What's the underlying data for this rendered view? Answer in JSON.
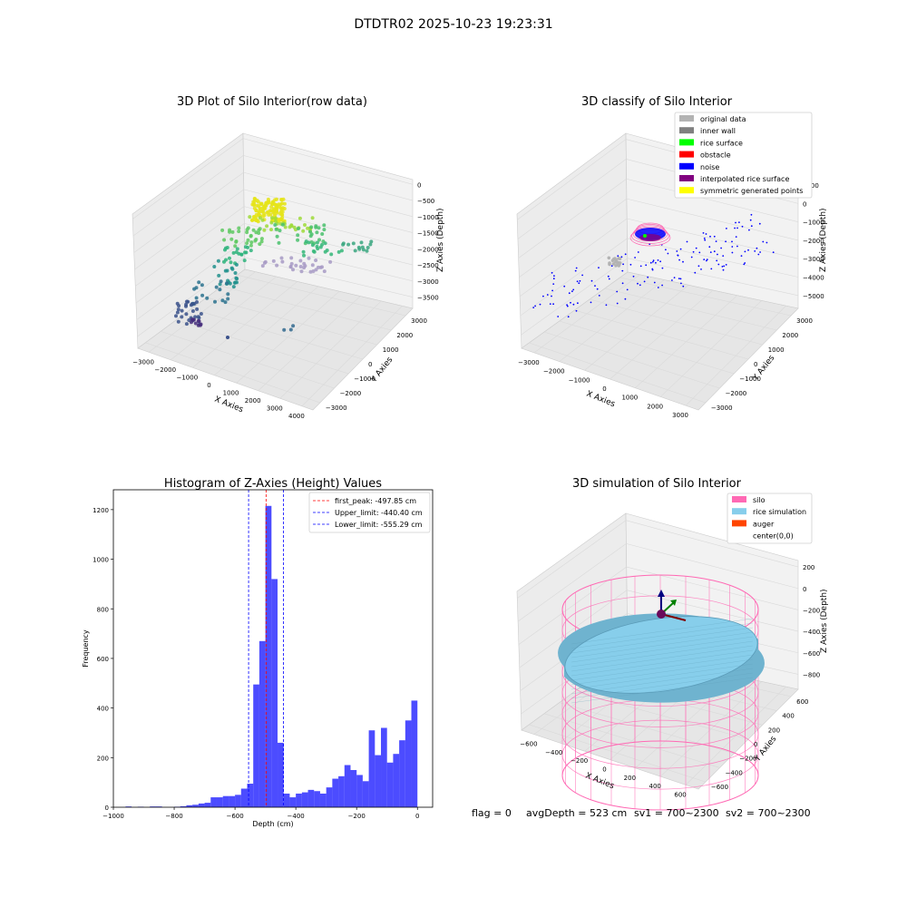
{
  "suptitle": "DTDTR02 2025-10-23 19:23:31",
  "panels": {
    "raw": {
      "title": "3D Plot of Silo Interior(row data)",
      "xlabel": "X Axies",
      "ylabel": "Y Axies",
      "zlabel": "Z Axies (Depth)",
      "xticks": [
        "−3000",
        "−2000",
        "−1000",
        "0",
        "1000",
        "2000",
        "3000",
        "4000"
      ],
      "yticks": [
        "−3000",
        "−2000",
        "−1000",
        "0",
        "1000",
        "2000",
        "3000"
      ],
      "zticks": [
        "0",
        "−500",
        "−1000",
        "−1500",
        "−2000",
        "−2500",
        "−3000",
        "−3500"
      ]
    },
    "classify": {
      "title": "3D classify of Silo Interior",
      "xlabel": "X Axies",
      "ylabel": "Y Axies",
      "zlabel": "Z Axies (Depth)",
      "xticks": [
        "−3000",
        "−2000",
        "−1000",
        "0",
        "1000",
        "2000",
        "3000"
      ],
      "yticks": [
        "−3000",
        "−2000",
        "−1000",
        "0",
        "1000",
        "2000",
        "3000"
      ],
      "zticks": [
        "1000",
        "0",
        "−1000",
        "−2000",
        "−3000",
        "−4000",
        "−5000"
      ],
      "legend": [
        {
          "label": "original data",
          "color": "#b3b3b3"
        },
        {
          "label": "inner wall",
          "color": "#808080"
        },
        {
          "label": "rice surface",
          "color": "#00ff00"
        },
        {
          "label": "obstacle",
          "color": "#ff0000"
        },
        {
          "label": "noise",
          "color": "#0000ff"
        },
        {
          "label": "interpolated rice surface",
          "color": "#800080"
        },
        {
          "label": "symmetric generated points",
          "color": "#ffff00"
        }
      ]
    },
    "simulation": {
      "title": "3D simulation of Silo Interior",
      "xlabel": "X Axies",
      "ylabel": "Y Axies",
      "zlabel": "Z Axies (Depth)",
      "xticks": [
        "−600",
        "−400",
        "−200",
        "0",
        "200",
        "400",
        "600"
      ],
      "yticks": [
        "−600",
        "−400",
        "−200",
        "0",
        "200",
        "400",
        "600"
      ],
      "zticks": [
        "200",
        "0",
        "−200",
        "−400",
        "−600",
        "−800"
      ],
      "legend": [
        {
          "label": "silo",
          "color": "#ff69b4"
        },
        {
          "label": "rice simulation",
          "color": "#87ceeb"
        },
        {
          "label": "auger",
          "color": "#ff4500"
        },
        {
          "label": "center(0,0)",
          "color": "#ffffff"
        }
      ]
    }
  },
  "status": {
    "flag": "flag = 0",
    "avg": "avgDepth = 523 cm",
    "sv1": "sv1 = 700~2300",
    "sv2": "sv2 = 700~2300"
  },
  "chart_data": [
    {
      "type": "bar",
      "title": "Histogram of Z-Axies (Height) Values",
      "xlabel": "Depth (cm)",
      "ylabel": "Frequency",
      "xlim": [
        -1000,
        50
      ],
      "ylim": [
        0,
        1280
      ],
      "xticks": [
        -1000,
        -800,
        -600,
        -400,
        -200,
        0
      ],
      "yticks": [
        0,
        200,
        400,
        600,
        800,
        1000,
        1200
      ],
      "bar_color": "#0000ff",
      "bin_width": 20,
      "bin_starts": [
        -960,
        -940,
        -920,
        -900,
        -880,
        -860,
        -840,
        -820,
        -800,
        -780,
        -760,
        -740,
        -720,
        -700,
        -680,
        -660,
        -640,
        -620,
        -600,
        -580,
        -560,
        -540,
        -520,
        -500,
        -480,
        -460,
        -440,
        -420,
        -400,
        -380,
        -360,
        -340,
        -320,
        -300,
        -280,
        -260,
        -240,
        -220,
        -200,
        -180,
        -160,
        -140,
        -120,
        -100,
        -80,
        -60,
        -40,
        -20
      ],
      "values": [
        3,
        0,
        2,
        0,
        3,
        3,
        0,
        0,
        2,
        4,
        8,
        10,
        15,
        18,
        40,
        40,
        45,
        45,
        50,
        75,
        95,
        495,
        670,
        1215,
        920,
        260,
        55,
        40,
        55,
        60,
        70,
        65,
        55,
        80,
        115,
        125,
        170,
        150,
        130,
        105,
        310,
        210,
        320,
        180,
        215,
        270,
        350,
        430
      ],
      "lines": [
        {
          "label": "first_peak: -497.85 cm",
          "x": -497.85,
          "color": "#ff0000"
        },
        {
          "label": "Upper_limit: -440.40 cm",
          "x": -440.4,
          "color": "#0000ff"
        },
        {
          "label": "Lower_limit: -555.29 cm",
          "x": -555.29,
          "color": "#0000ff"
        }
      ],
      "legend_position": "top-right"
    }
  ]
}
